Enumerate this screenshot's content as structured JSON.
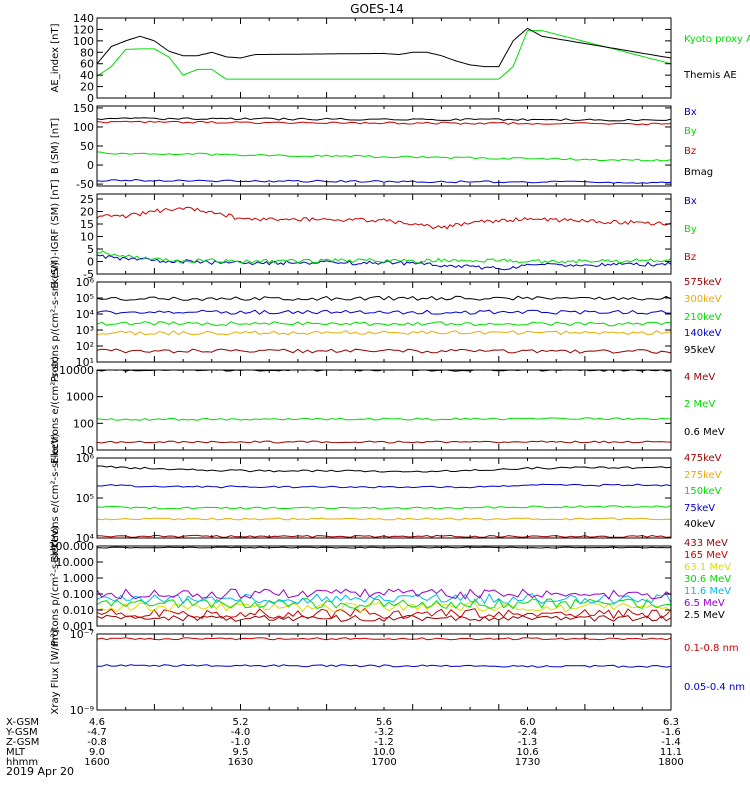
{
  "title": "GOES-14",
  "date_label": "2019 Apr 20",
  "colors": {
    "black": "#000000",
    "red": "#cc0000",
    "green": "#00dd00",
    "blue": "#0000cc",
    "orange": "#eeaa00",
    "yellow": "#dddd00",
    "cyan": "#00bbee",
    "purple": "#9900cc",
    "dark_red": "#990000",
    "burgundy": "#880022",
    "navy": "#000099"
  },
  "footer": {
    "rows": [
      {
        "label": "X-GSM",
        "values": [
          "4.6",
          "5.2",
          "5.6",
          "6.0",
          "6.3"
        ]
      },
      {
        "label": "Y-GSM",
        "values": [
          "-4.7",
          "-4.0",
          "-3.2",
          "-2.4",
          "-1.6"
        ]
      },
      {
        "label": "Z-GSM",
        "values": [
          "-0.8",
          "-1.0",
          "-1.2",
          "-1.3",
          "-1.4"
        ]
      },
      {
        "label": "MLT",
        "values": [
          "9.0",
          "9.5",
          "10.0",
          "10.6",
          "11.1"
        ]
      },
      {
        "label": "hhmm",
        "values": [
          "1600",
          "1630",
          "1700",
          "1730",
          "1800"
        ]
      }
    ]
  },
  "chart_data": [
    {
      "type": "line",
      "ylabel": "AE_index [nT]",
      "yscale": "linear",
      "ylim": [
        0,
        140
      ],
      "yticks": [
        0,
        20,
        40,
        60,
        80,
        100,
        120,
        140
      ],
      "ytick_labels": [
        "0",
        "20",
        "40",
        "60",
        "80",
        "100",
        "120",
        "140"
      ],
      "x": [
        1600,
        1605,
        1610,
        1615,
        1620,
        1625,
        1630,
        1635,
        1640,
        1645,
        1650,
        1655,
        1700,
        1705,
        1710,
        1715,
        1720,
        1725,
        1730,
        1735,
        1740,
        1745,
        1750,
        1755,
        1800
      ],
      "series": [
        {
          "name": "Kyoto proxy AE",
          "color": "green",
          "values": [
            38,
            55,
            85,
            86,
            86,
            72,
            40,
            50,
            50,
            33,
            33,
            33,
            33,
            33,
            33,
            33,
            33,
            33,
            33,
            33,
            33,
            55,
            118,
            118,
            60
          ]
        },
        {
          "name": "Themis AE",
          "color": "black",
          "values": [
            60,
            90,
            100,
            108,
            100,
            82,
            74,
            74,
            80,
            72,
            70,
            76,
            78,
            76,
            80,
            80,
            74,
            65,
            58,
            55,
            55,
            100,
            122,
            108,
            70
          ]
        }
      ]
    },
    {
      "type": "line",
      "ylabel": "B (SM) [nT]",
      "yscale": "linear",
      "ylim": [
        -55,
        155
      ],
      "yticks": [
        -50,
        0,
        50,
        100,
        150
      ],
      "ytick_labels": [
        "-50",
        "0",
        "50",
        "100",
        "150"
      ],
      "x": [
        1600,
        1800
      ],
      "series": [
        {
          "name": "Bx",
          "color": "blue",
          "values": [
            -40,
            -46
          ]
        },
        {
          "name": "By",
          "color": "green",
          "values": [
            32,
            12
          ]
        },
        {
          "name": "Bz",
          "color": "red",
          "values": [
            113,
            108
          ]
        },
        {
          "name": "Bmag",
          "color": "black",
          "values": [
            122,
            118
          ]
        }
      ]
    },
    {
      "type": "line",
      "ylabel": "B (SM)-IGRF (SM) [nT]",
      "yscale": "linear",
      "ylim": [
        -5,
        27
      ],
      "yticks": [
        -5,
        0,
        5,
        10,
        15,
        20,
        25
      ],
      "ytick_labels": [
        "-5",
        "0",
        "5",
        "10",
        "15",
        "20",
        "25"
      ],
      "x": [
        1600,
        1610,
        1620,
        1630,
        1640,
        1650,
        1700,
        1710,
        1720,
        1730,
        1740,
        1750,
        1800
      ],
      "series": [
        {
          "name": "Bx",
          "color": "blue",
          "values": [
            2.0,
            1.0,
            0.5,
            0.0,
            -0.5,
            -0.5,
            -0.5,
            -1.0,
            -1.5,
            -2.0,
            -3.0,
            -1.5,
            -1.0
          ]
        },
        {
          "name": "By",
          "color": "green",
          "values": [
            4.0,
            2.0,
            1.0,
            0.0,
            0.5,
            0.0,
            0.5,
            0.0,
            0.5,
            0.0,
            0.5,
            0.0,
            0.5
          ]
        },
        {
          "name": "Bz",
          "color": "red",
          "values": [
            18.0,
            18.0,
            20.0,
            21.5,
            20.0,
            17.0,
            16.5,
            15.0,
            13.5,
            15.5,
            16.5,
            17.0,
            15.0
          ]
        }
      ]
    },
    {
      "type": "line",
      "ylabel": "Protons p/(cm²-s-sr-keV)",
      "yscale": "log",
      "ylim": [
        10,
        1000000
      ],
      "yticks": [
        10,
        100,
        1000,
        10000,
        100000,
        1000000
      ],
      "ytick_labels": [
        "10¹",
        "10²",
        "10³",
        "10⁴",
        "10⁵",
        "10⁶"
      ],
      "x": [
        1600,
        1800
      ],
      "series": [
        {
          "name": "575keV",
          "color": "dark_red",
          "values": [
            50,
            45
          ]
        },
        {
          "name": "300keV",
          "color": "orange",
          "values": [
            650,
            700
          ]
        },
        {
          "name": "210keV",
          "color": "green",
          "values": [
            2600,
            2300
          ]
        },
        {
          "name": "140keV",
          "color": "blue",
          "values": [
            13000,
            13000
          ]
        },
        {
          "name": "95keV",
          "color": "black",
          "values": [
            90000,
            100000
          ]
        }
      ]
    },
    {
      "type": "line",
      "ylabel": "Electrons e/(cm²-s-sr)",
      "yscale": "log",
      "ylim": [
        10,
        10000
      ],
      "yticks": [
        10,
        100,
        1000,
        10000
      ],
      "ytick_labels": [
        "10",
        "100",
        "1000",
        "10000"
      ],
      "x": [
        1600,
        1800
      ],
      "series": [
        {
          "name": "4 MeV",
          "color": "dark_red",
          "values": [
            20,
            20
          ]
        },
        {
          "name": "2 MeV",
          "color": "green",
          "values": [
            140,
            150
          ]
        },
        {
          "name": "0.6 MeV",
          "color": "black",
          "values": [
            9800,
            9800
          ]
        }
      ]
    },
    {
      "type": "line",
      "ylabel": "Electrons e/(cm²-s-sr-keV)",
      "yscale": "log",
      "ylim": [
        10000,
        1000000
      ],
      "yticks": [
        10000,
        100000,
        1000000
      ],
      "ytick_labels": [
        "10⁴",
        "10⁵",
        "10⁶"
      ],
      "x": [
        1600,
        1610,
        1620,
        1630,
        1640,
        1650,
        1700,
        1710,
        1720,
        1730,
        1740,
        1750,
        1800
      ],
      "series": [
        {
          "name": "475keV",
          "color": "dark_red",
          "values": [
            11000,
            11000,
            11000,
            11000,
            11000,
            11000,
            11000,
            11000,
            11000,
            11000,
            11000,
            11000,
            11000
          ]
        },
        {
          "name": "275keV",
          "color": "orange",
          "values": [
            30000,
            30000,
            30000,
            30000,
            30000,
            30000,
            30000,
            30000,
            30000,
            30000,
            30000,
            30000,
            30000
          ]
        },
        {
          "name": "150keV",
          "color": "green",
          "values": [
            60000,
            58000,
            56000,
            56000,
            56000,
            56000,
            56000,
            56000,
            56000,
            56000,
            58000,
            60000,
            62000
          ]
        },
        {
          "name": "75keV",
          "color": "blue",
          "values": [
            210000,
            200000,
            190000,
            190000,
            190000,
            190000,
            190000,
            190000,
            190000,
            190000,
            200000,
            210000,
            210000
          ]
        },
        {
          "name": "40keV",
          "color": "black",
          "values": [
            620000,
            580000,
            540000,
            520000,
            500000,
            480000,
            470000,
            460000,
            470000,
            480000,
            520000,
            560000,
            580000
          ]
        }
      ]
    },
    {
      "type": "line",
      "ylabel": "Protons p/(cm²-s-sr-keV)",
      "yscale": "log",
      "ylim": [
        0.001,
        100
      ],
      "yticks": [
        0.001,
        0.01,
        0.1,
        1,
        10,
        100
      ],
      "ytick_labels": [
        "0.001",
        "0.010",
        "0.100",
        "1.000",
        "10.000",
        "100.000"
      ],
      "x": [
        1600,
        1800
      ],
      "series": [
        {
          "name": "433 MeV",
          "color": "dark_red",
          "values": [
            0.003,
            0.003
          ]
        },
        {
          "name": "165 MeV",
          "color": "red",
          "values": [
            0.006,
            0.006
          ]
        },
        {
          "name": "63.1 MeV",
          "color": "yellow",
          "values": [
            0.015,
            0.015
          ]
        },
        {
          "name": "30.6 MeV",
          "color": "green",
          "values": [
            0.025,
            0.025
          ]
        },
        {
          "name": "11.6 MeV",
          "color": "cyan",
          "values": [
            0.05,
            0.05
          ]
        },
        {
          "name": "6.5 MeV",
          "color": "purple",
          "values": [
            0.1,
            0.1
          ]
        },
        {
          "name": "2.5 MeV",
          "color": "black",
          "values": [
            80,
            80
          ]
        }
      ]
    },
    {
      "type": "line",
      "ylabel": "Xray Flux [W/m²]",
      "yscale": "log",
      "ylim": [
        1e-09,
        1e-07
      ],
      "yticks": [
        1e-09,
        1e-07
      ],
      "ytick_labels": [
        "10⁻⁹",
        "10⁻⁷"
      ],
      "x": [
        1600,
        1800
      ],
      "series": [
        {
          "name": "0.1-0.8 nm",
          "color": "red",
          "values": [
            7.5e-08,
            7.5e-08
          ]
        },
        {
          "name": "0.05-0.4 nm",
          "color": "blue",
          "values": [
            1.5e-08,
            1.4e-08
          ]
        }
      ]
    }
  ]
}
